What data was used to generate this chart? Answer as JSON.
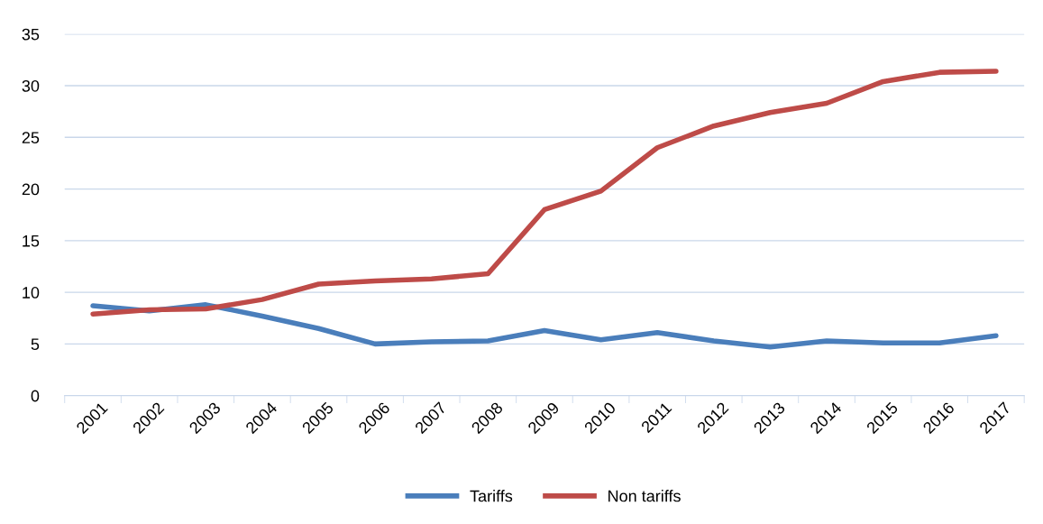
{
  "chart_data": {
    "type": "line",
    "categories": [
      "2001",
      "2002",
      "2003",
      "2004",
      "2005",
      "2006",
      "2007",
      "2008",
      "2009",
      "2010",
      "2011",
      "2012",
      "2013",
      "2014",
      "2015",
      "2016",
      "2017"
    ],
    "series": [
      {
        "name": "Tariffs",
        "color": "#4a7ebb",
        "values": [
          8.7,
          8.2,
          8.8,
          7.7,
          6.5,
          5.0,
          5.2,
          5.3,
          6.3,
          5.4,
          6.1,
          5.3,
          4.7,
          5.3,
          5.1,
          5.1,
          5.8
        ]
      },
      {
        "name": "Non tariffs",
        "color": "#be4b48",
        "values": [
          7.9,
          8.3,
          8.4,
          9.3,
          10.8,
          11.1,
          11.3,
          11.8,
          18.0,
          19.8,
          24.0,
          26.1,
          27.4,
          28.3,
          30.4,
          31.3,
          31.4
        ]
      }
    ],
    "ylim": [
      0,
      35
    ],
    "yticks": [
      0,
      5,
      10,
      15,
      20,
      25,
      30,
      35
    ],
    "grid": "y",
    "legend": "bottom",
    "marker": "none",
    "line_style": "solid"
  }
}
